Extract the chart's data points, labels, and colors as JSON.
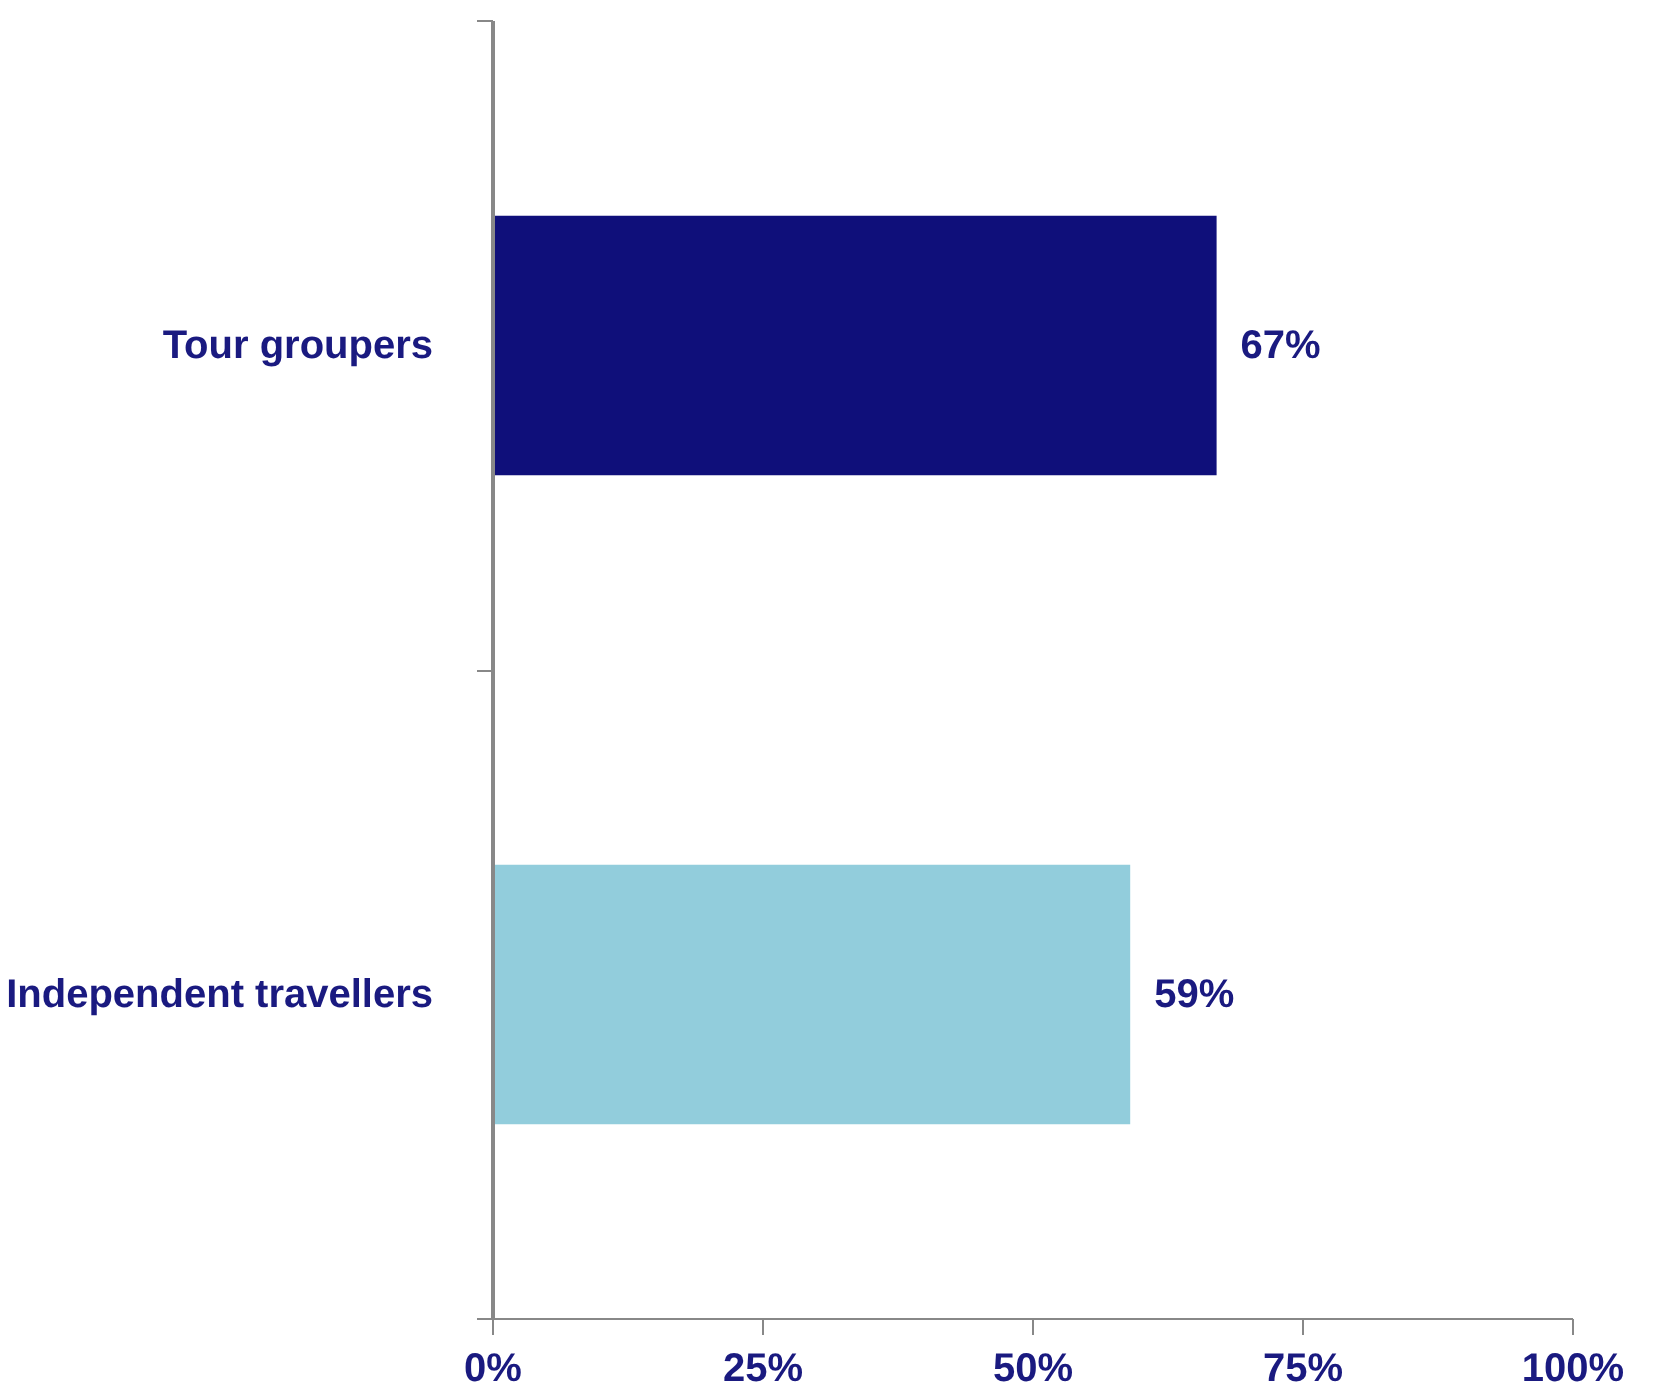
{
  "chart_data": {
    "type": "bar",
    "orientation": "horizontal",
    "categories": [
      "Tour groupers",
      "Independent travellers"
    ],
    "values": [
      67,
      59
    ],
    "colors": [
      "#0f0f7a",
      "#92cddc"
    ],
    "value_labels": [
      "67%",
      "59%"
    ],
    "xlim": [
      0,
      100
    ],
    "xticks": [
      {
        "value": 0,
        "label": "0%"
      },
      {
        "value": 25,
        "label": "25%"
      },
      {
        "value": 50,
        "label": "50%"
      },
      {
        "value": 75,
        "label": "75%"
      },
      {
        "value": 100,
        "label": "100%"
      }
    ],
    "grid": false
  }
}
